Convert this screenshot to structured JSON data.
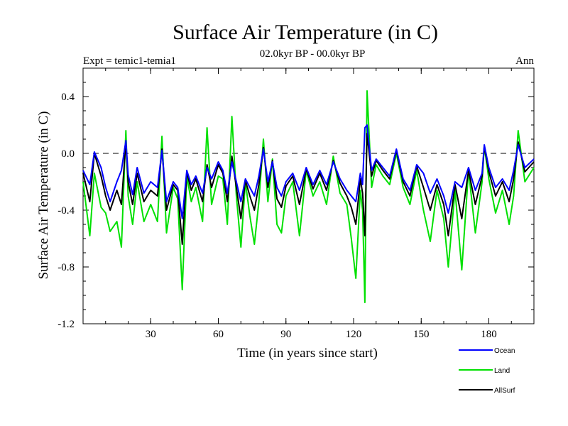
{
  "chart_data": {
    "type": "line",
    "title": "Surface Air Temperature (in C)",
    "subtitle": "02.0kyr BP - 00.0kyr BP",
    "left_label": "Expt = temic1-temia1",
    "right_label": "Ann",
    "xlabel": "Time (in years since start)",
    "ylabel": "Surface Air Temperature (in C)",
    "xlim": [
      0,
      200
    ],
    "ylim": [
      -1.2,
      0.6
    ],
    "xticks": [
      30,
      60,
      90,
      120,
      150,
      180
    ],
    "xtick_labels": [
      "30",
      "60",
      "90",
      "120",
      "150",
      "180"
    ],
    "yticks": [
      -1.2,
      -0.8,
      -0.4,
      0.0,
      0.4
    ],
    "ytick_labels": [
      "-1.2",
      "-0.8",
      "-0.4",
      "0.0",
      "0.4"
    ],
    "reference_line": 0.0,
    "x": [
      0,
      3,
      5,
      8,
      10,
      12,
      15,
      17,
      19,
      20,
      22,
      24,
      27,
      30,
      33,
      35,
      37,
      40,
      42,
      44,
      46,
      48,
      50,
      53,
      55,
      57,
      60,
      62,
      64,
      66,
      68,
      70,
      72,
      74,
      76,
      78,
      80,
      82,
      84,
      86,
      88,
      90,
      93,
      96,
      99,
      102,
      105,
      108,
      111,
      114,
      117,
      119,
      121,
      123,
      124,
      125,
      126,
      128,
      130,
      133,
      136,
      139,
      142,
      145,
      148,
      151,
      154,
      157,
      160,
      162,
      165,
      168,
      171,
      174,
      177,
      178,
      180,
      183,
      186,
      189,
      191,
      193,
      196,
      200
    ],
    "series": [
      {
        "name": "Ocean",
        "color": "#0000ff",
        "values": [
          -0.12,
          -0.22,
          0.01,
          -0.1,
          -0.24,
          -0.34,
          -0.2,
          -0.12,
          0.09,
          -0.15,
          -0.29,
          -0.1,
          -0.28,
          -0.2,
          -0.24,
          0.02,
          -0.34,
          -0.2,
          -0.24,
          -0.46,
          -0.12,
          -0.22,
          -0.16,
          -0.28,
          -0.1,
          -0.18,
          -0.06,
          -0.12,
          -0.28,
          -0.06,
          -0.2,
          -0.34,
          -0.18,
          -0.24,
          -0.3,
          -0.16,
          0.03,
          -0.2,
          -0.06,
          -0.24,
          -0.3,
          -0.2,
          -0.14,
          -0.26,
          -0.1,
          -0.22,
          -0.12,
          -0.22,
          -0.06,
          -0.18,
          -0.26,
          -0.3,
          -0.34,
          -0.14,
          -0.22,
          0.18,
          0.2,
          -0.12,
          -0.04,
          -0.1,
          -0.16,
          0.03,
          -0.18,
          -0.26,
          -0.08,
          -0.14,
          -0.28,
          -0.18,
          -0.3,
          -0.42,
          -0.2,
          -0.24,
          -0.1,
          -0.26,
          -0.14,
          0.06,
          -0.1,
          -0.24,
          -0.18,
          -0.26,
          -0.12,
          0.06,
          -0.1,
          -0.04
        ]
      },
      {
        "name": "Land",
        "color": "#00e000",
        "values": [
          -0.2,
          -0.58,
          -0.14,
          -0.38,
          -0.42,
          -0.55,
          -0.48,
          -0.66,
          0.16,
          -0.3,
          -0.5,
          -0.2,
          -0.48,
          -0.36,
          -0.48,
          0.12,
          -0.56,
          -0.24,
          -0.32,
          -0.96,
          -0.16,
          -0.34,
          -0.24,
          -0.48,
          0.18,
          -0.36,
          -0.16,
          -0.18,
          -0.5,
          0.26,
          -0.3,
          -0.66,
          -0.2,
          -0.44,
          -0.64,
          -0.34,
          0.1,
          -0.34,
          -0.04,
          -0.5,
          -0.56,
          -0.3,
          -0.2,
          -0.58,
          -0.12,
          -0.3,
          -0.2,
          -0.36,
          -0.02,
          -0.28,
          -0.36,
          -0.6,
          -0.88,
          -0.26,
          -0.4,
          -1.05,
          0.44,
          -0.24,
          -0.08,
          -0.16,
          -0.22,
          0.0,
          -0.24,
          -0.36,
          -0.12,
          -0.4,
          -0.62,
          -0.26,
          -0.46,
          -0.8,
          -0.26,
          -0.82,
          -0.12,
          -0.56,
          -0.2,
          0.05,
          -0.18,
          -0.42,
          -0.26,
          -0.5,
          -0.3,
          0.16,
          -0.2,
          -0.1
        ]
      },
      {
        "name": "AllSurf",
        "color": "#000000",
        "values": [
          -0.14,
          -0.34,
          0.0,
          -0.16,
          -0.3,
          -0.4,
          -0.26,
          -0.36,
          0.08,
          -0.2,
          -0.36,
          -0.14,
          -0.34,
          -0.26,
          -0.3,
          0.03,
          -0.4,
          -0.22,
          -0.26,
          -0.64,
          -0.13,
          -0.26,
          -0.18,
          -0.34,
          -0.08,
          -0.24,
          -0.08,
          -0.14,
          -0.34,
          -0.02,
          -0.24,
          -0.46,
          -0.19,
          -0.3,
          -0.4,
          -0.22,
          0.04,
          -0.24,
          -0.05,
          -0.32,
          -0.38,
          -0.23,
          -0.16,
          -0.36,
          -0.11,
          -0.25,
          -0.14,
          -0.26,
          -0.05,
          -0.21,
          -0.3,
          -0.38,
          -0.5,
          -0.18,
          -0.28,
          -0.58,
          0.14,
          -0.16,
          -0.05,
          -0.12,
          -0.18,
          0.02,
          -0.2,
          -0.3,
          -0.09,
          -0.24,
          -0.4,
          -0.22,
          -0.36,
          -0.58,
          -0.22,
          -0.46,
          -0.12,
          -0.36,
          -0.16,
          0.05,
          -0.13,
          -0.3,
          -0.2,
          -0.34,
          -0.18,
          0.08,
          -0.13,
          -0.06
        ]
      }
    ],
    "legend": [
      {
        "label": "Ocean",
        "color": "#0000ff"
      },
      {
        "label": "Land",
        "color": "#00e000"
      },
      {
        "label": "AllSurf",
        "color": "#000000"
      }
    ],
    "legend_position": "bottom-right"
  }
}
